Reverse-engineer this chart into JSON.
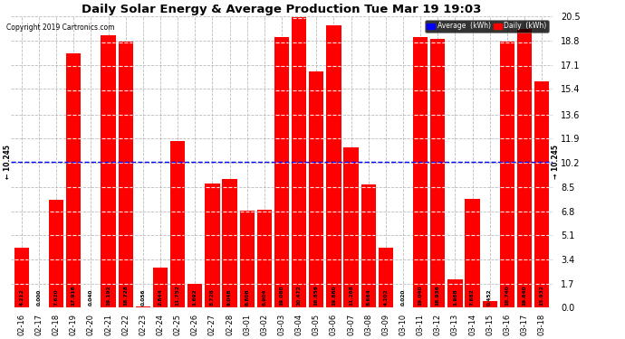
{
  "title": "Daily Solar Energy & Average Production Tue Mar 19 19:03",
  "copyright": "Copyright 2019 Cartronics.com",
  "average_value": 10.245,
  "bar_color": "#FF0000",
  "average_line_color": "#0000FF",
  "background_color": "#FFFFFF",
  "plot_bg_color": "#FFFFFF",
  "categories": [
    "02-16",
    "02-17",
    "02-18",
    "02-19",
    "02-20",
    "02-21",
    "02-22",
    "02-23",
    "02-24",
    "02-25",
    "02-26",
    "02-27",
    "02-28",
    "03-01",
    "03-02",
    "03-03",
    "03-04",
    "03-05",
    "03-06",
    "03-07",
    "03-08",
    "03-09",
    "03-10",
    "03-11",
    "03-12",
    "03-13",
    "03-14",
    "03-15",
    "03-16",
    "03-17",
    "03-18"
  ],
  "values": [
    4.212,
    0.0,
    7.62,
    17.916,
    0.04,
    19.192,
    18.728,
    0.056,
    2.844,
    11.752,
    1.692,
    8.728,
    9.048,
    6.808,
    6.904,
    19.08,
    20.472,
    16.656,
    19.88,
    11.288,
    8.664,
    4.202,
    0.02,
    19.04,
    18.936,
    1.968,
    7.682,
    0.452,
    18.74,
    19.64,
    15.932
  ],
  "yticks": [
    0.0,
    1.7,
    3.4,
    5.1,
    6.8,
    8.5,
    10.2,
    11.9,
    13.6,
    15.4,
    17.1,
    18.8,
    20.5
  ],
  "ymax": 20.5,
  "ymin": 0.0,
  "legend_avg_color": "#0000FF",
  "legend_daily_color": "#FF0000",
  "legend_avg_label": "Average  (kWh)",
  "legend_daily_label": "Daily  (kWh)",
  "grid_color": "#AAAAAA",
  "bar_width": 0.85
}
